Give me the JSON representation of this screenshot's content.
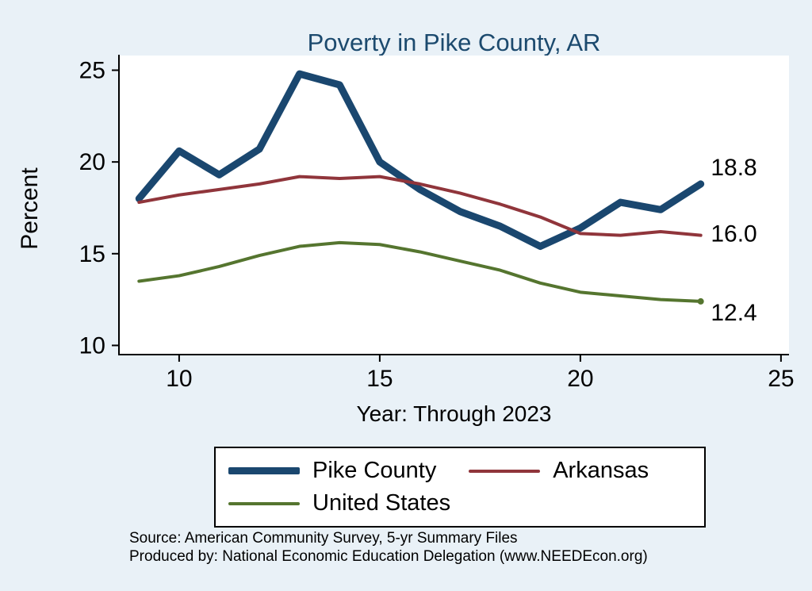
{
  "chart_data": {
    "type": "line",
    "title": "Poverty in Pike County, AR",
    "xlabel": "Year: Through 2023",
    "ylabel": "Percent",
    "xlim": [
      8.5,
      25.2
    ],
    "ylim": [
      9.5,
      25.8
    ],
    "x_ticks": [
      10,
      15,
      20,
      25
    ],
    "y_ticks": [
      10,
      15,
      20,
      25
    ],
    "grid": false,
    "legend_position": "bottom",
    "x": [
      9,
      10,
      11,
      12,
      13,
      14,
      15,
      16,
      17,
      18,
      19,
      20,
      21,
      22,
      23
    ],
    "series": [
      {
        "name": "Pike County",
        "color": "#1a476f",
        "width": 9,
        "values": [
          18.0,
          20.6,
          19.3,
          20.7,
          24.8,
          24.2,
          20.0,
          18.5,
          17.3,
          16.5,
          15.4,
          16.4,
          17.8,
          17.4,
          18.8
        ]
      },
      {
        "name": "Arkansas",
        "color": "#90353b",
        "width": 4,
        "values": [
          17.8,
          18.2,
          18.5,
          18.8,
          19.2,
          19.1,
          19.2,
          18.8,
          18.3,
          17.7,
          17.0,
          16.1,
          16.0,
          16.2,
          16.0
        ]
      },
      {
        "name": "United States",
        "color": "#55752f",
        "width": 4,
        "end_dot": true,
        "values": [
          13.5,
          13.8,
          14.3,
          14.9,
          15.4,
          15.6,
          15.5,
          15.1,
          14.6,
          14.1,
          13.4,
          12.9,
          12.7,
          12.5,
          12.4
        ]
      }
    ],
    "end_labels": [
      {
        "text": "18.8",
        "x": 23.25,
        "y": 19.7
      },
      {
        "text": "16.0",
        "x": 23.25,
        "y": 16.1
      },
      {
        "text": "12.4",
        "x": 23.25,
        "y": 11.8
      }
    ]
  },
  "footer": {
    "source": "Source: American Community Survey, 5-yr Summary Files",
    "produced_by": "Produced by: National Economic Education Delegation (www.NEEDEcon.org)"
  },
  "colors": {
    "background": "#e9f1f7",
    "plot_background": "#ffffff",
    "axis": "#000000",
    "title": "#1c4a6e",
    "legend_border": "#000000"
  }
}
